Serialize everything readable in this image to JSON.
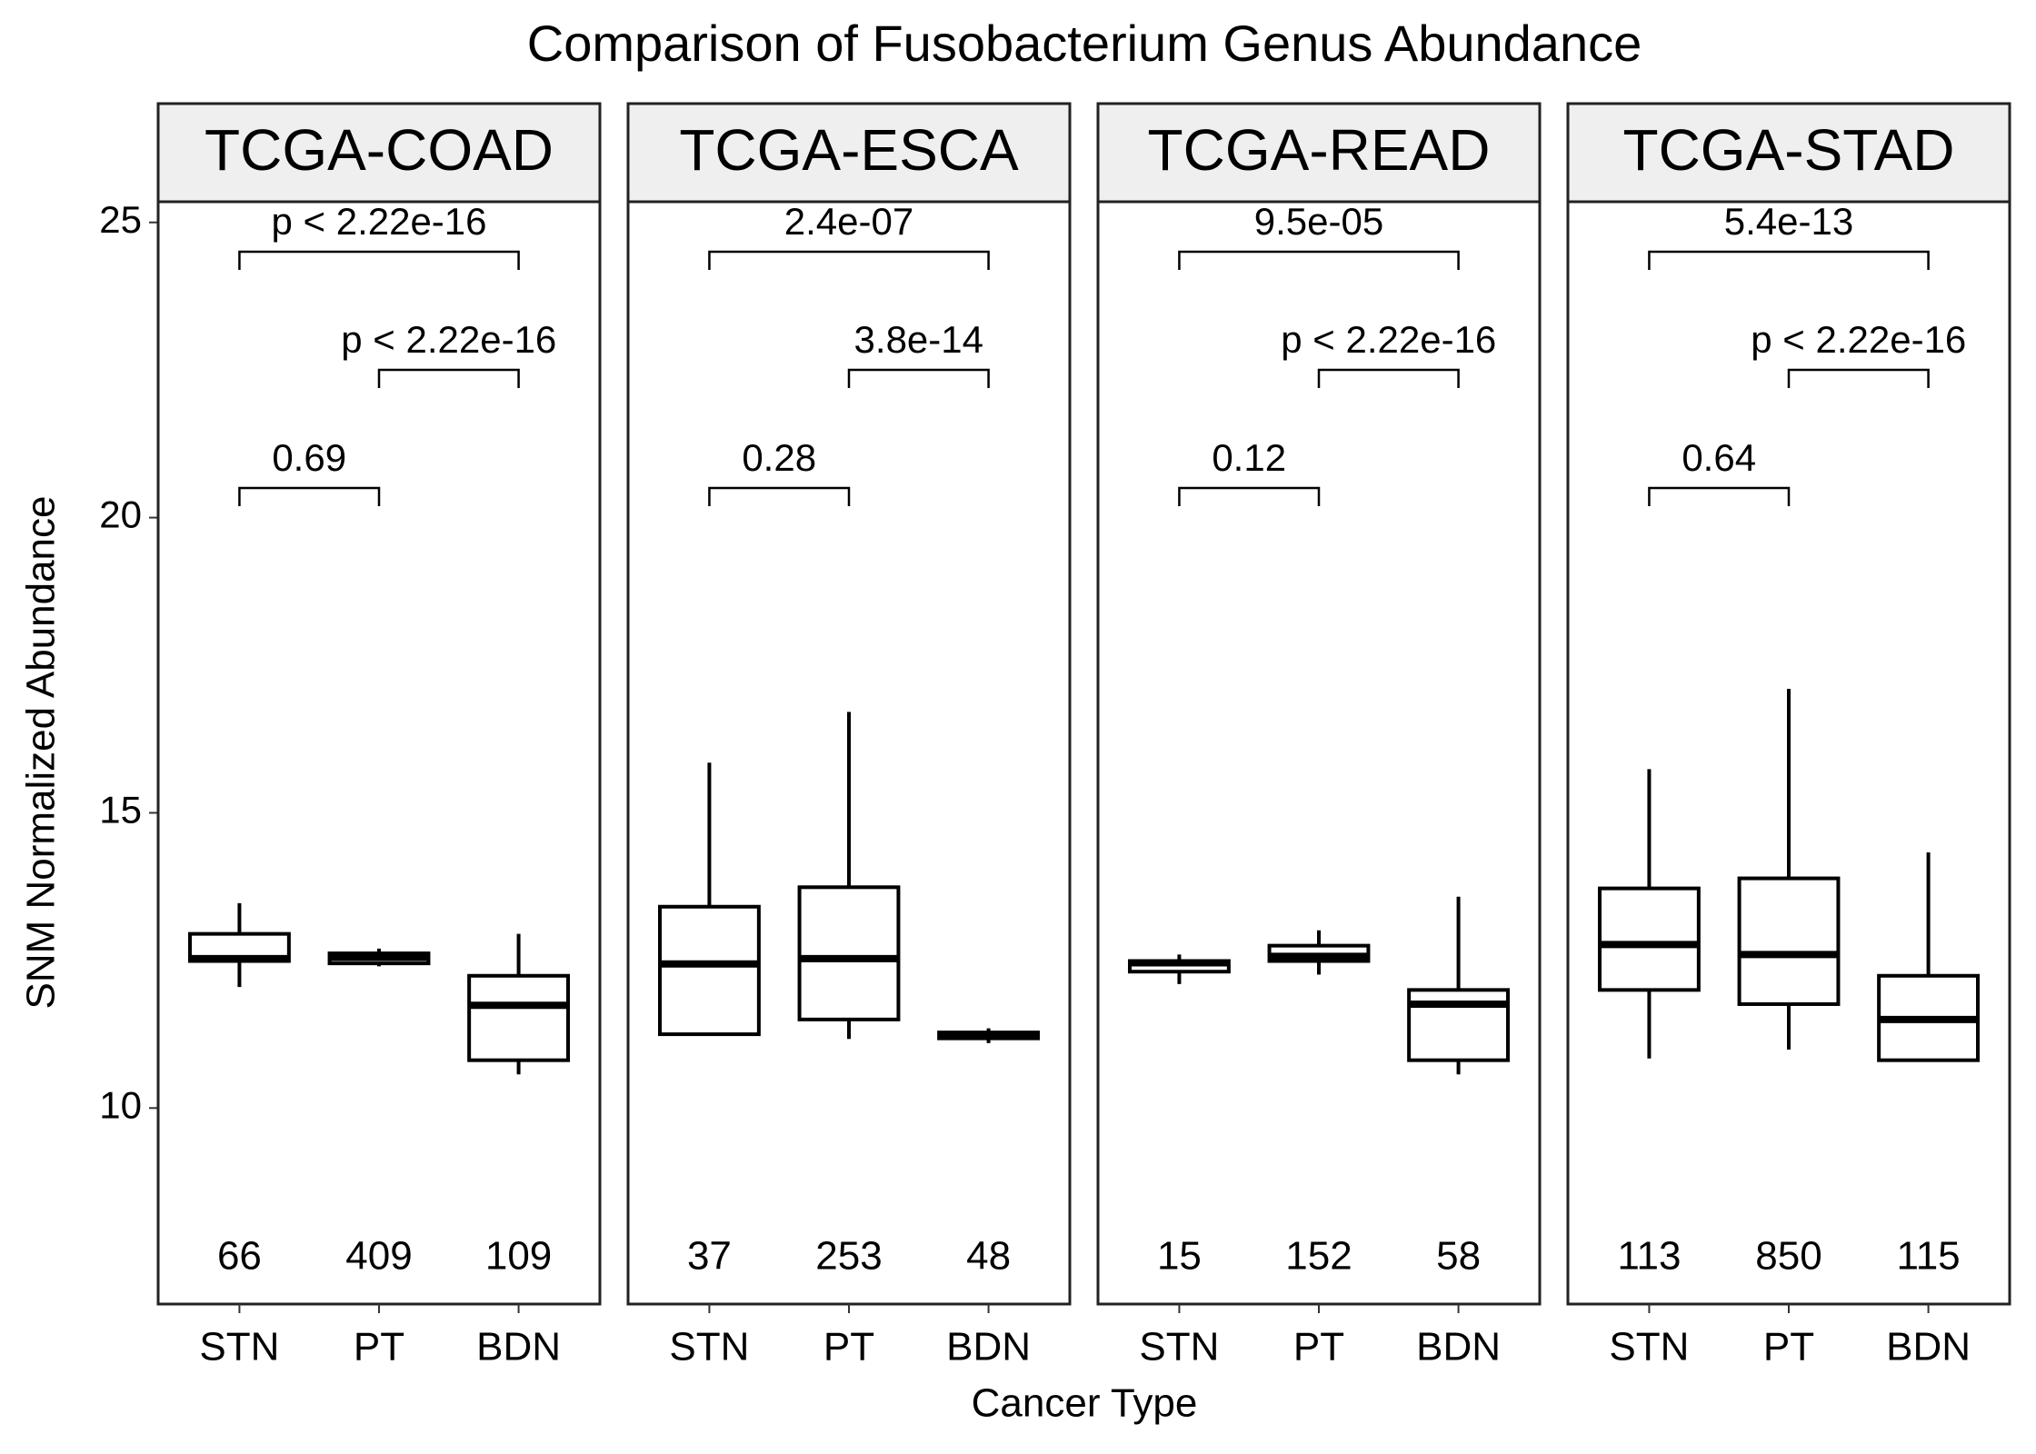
{
  "chart_data": {
    "type": "box",
    "title": "Comparison of Fusobacterium Genus Abundance",
    "x_label": "Cancer Type",
    "y_label": "SNM Normalized Abundance",
    "categories": [
      "STN",
      "PT",
      "BDN"
    ],
    "ylim": [
      6.68,
      25.35
    ],
    "yticks": [
      10,
      15,
      20,
      25
    ],
    "box_color": "#000000",
    "count_color": "#0000ff",
    "facets": [
      {
        "title": "TCGA-COAD",
        "low": [
          12.05,
          12.4,
          10.57
        ],
        "q1": [
          12.49,
          12.45,
          10.81
        ],
        "median": [
          12.53,
          12.55,
          11.74
        ],
        "q3": [
          12.95,
          12.62,
          12.24
        ],
        "high": [
          13.47,
          12.7,
          12.95
        ],
        "n": [
          66,
          409,
          109
        ],
        "comparisons": [
          {
            "pair": [
              "STN",
              "BDN"
            ],
            "label": "p < 2.22e-16"
          },
          {
            "pair": [
              "PT",
              "BDN"
            ],
            "label": "p < 2.22e-16"
          },
          {
            "pair": [
              "STN",
              "PT"
            ],
            "label": "0.69"
          }
        ]
      },
      {
        "title": "TCGA-ESCA",
        "low": [
          11.25,
          11.17,
          11.1
        ],
        "q1": [
          11.25,
          11.5,
          11.18
        ],
        "median": [
          12.44,
          12.53,
          11.23
        ],
        "q3": [
          13.41,
          13.74,
          11.28
        ],
        "high": [
          15.85,
          16.71,
          11.35
        ],
        "n": [
          37,
          253,
          48
        ],
        "comparisons": [
          {
            "pair": [
              "STN",
              "BDN"
            ],
            "label": "2.4e-07"
          },
          {
            "pair": [
              "PT",
              "BDN"
            ],
            "label": "3.8e-14"
          },
          {
            "pair": [
              "STN",
              "PT"
            ],
            "label": "0.28"
          }
        ]
      },
      {
        "title": "TCGA-READ",
        "low": [
          12.1,
          12.26,
          10.57
        ],
        "q1": [
          12.31,
          12.49,
          10.81
        ],
        "median": [
          12.46,
          12.57,
          11.76
        ],
        "q3": [
          12.49,
          12.75,
          12.0
        ],
        "high": [
          12.6,
          13.01,
          13.58
        ],
        "n": [
          15,
          152,
          58
        ],
        "comparisons": [
          {
            "pair": [
              "STN",
              "BDN"
            ],
            "label": "9.5e-05"
          },
          {
            "pair": [
              "PT",
              "BDN"
            ],
            "label": "p < 2.22e-16"
          },
          {
            "pair": [
              "STN",
              "PT"
            ],
            "label": "0.12"
          }
        ]
      },
      {
        "title": "TCGA-STAD",
        "low": [
          10.84,
          10.99,
          10.81
        ],
        "q1": [
          12.0,
          11.76,
          10.81
        ],
        "median": [
          12.77,
          12.6,
          11.5
        ],
        "q3": [
          13.72,
          13.89,
          12.24
        ],
        "high": [
          15.74,
          17.1,
          14.33
        ],
        "n": [
          113,
          850,
          115
        ],
        "comparisons": [
          {
            "pair": [
              "STN",
              "BDN"
            ],
            "label": "5.4e-13"
          },
          {
            "pair": [
              "PT",
              "BDN"
            ],
            "label": "p < 2.22e-16"
          },
          {
            "pair": [
              "STN",
              "PT"
            ],
            "label": "0.64"
          }
        ]
      }
    ]
  }
}
